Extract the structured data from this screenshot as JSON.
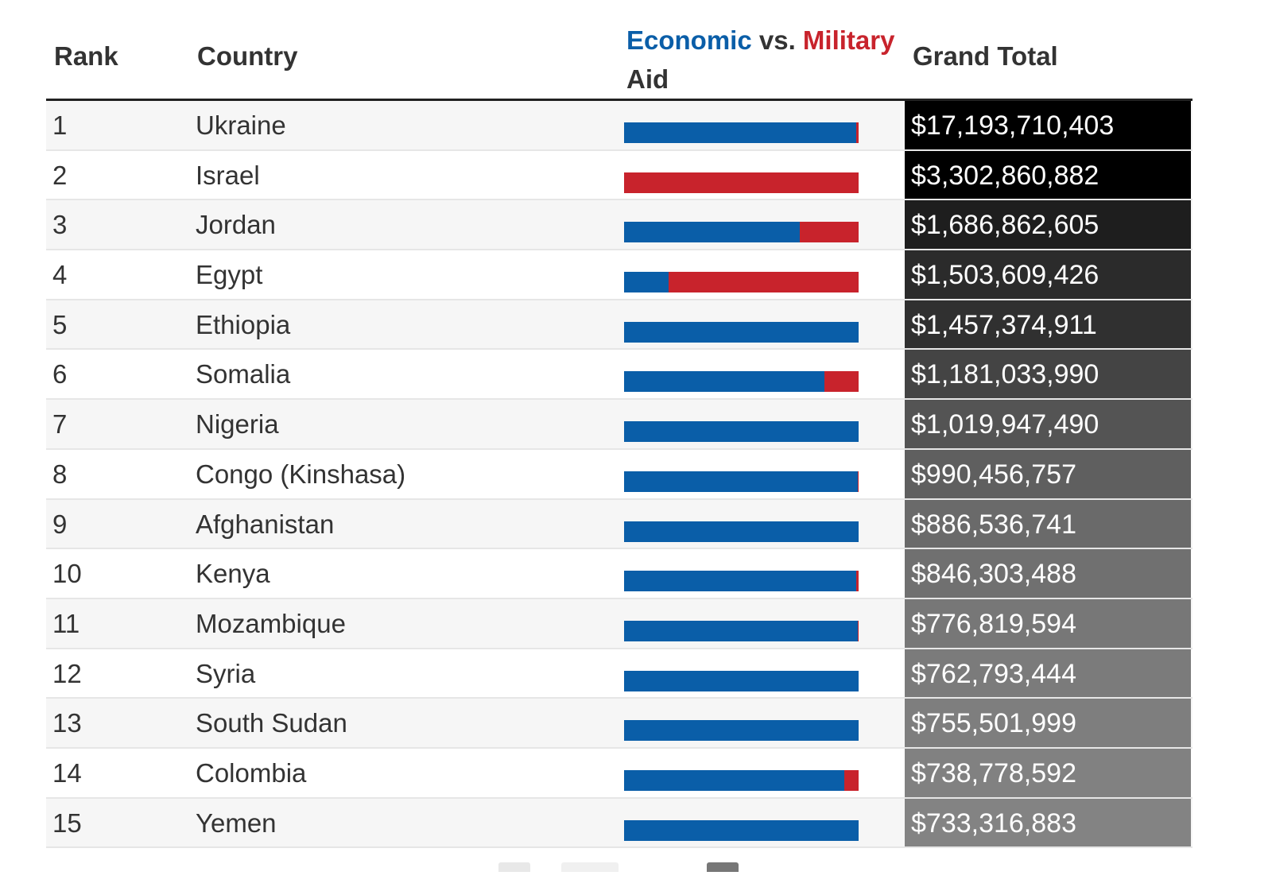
{
  "header": {
    "rank": "Rank",
    "country": "Country",
    "aid_economic": "Economic",
    "aid_vs": " vs. ",
    "aid_military": "Military",
    "aid_suffix": "Aid",
    "grand_total": "Grand Total"
  },
  "colors": {
    "economic": "#0a5ea8",
    "military": "#c8232c"
  },
  "chart_data": {
    "type": "table",
    "columns": [
      "Rank",
      "Country",
      "Economic vs. Military Aid",
      "Grand Total"
    ],
    "rows": [
      {
        "rank": "1",
        "country": "Ukraine",
        "economic_share": 0.99,
        "total": "$17,193,710,403",
        "shade": "#000000"
      },
      {
        "rank": "2",
        "country": "Israel",
        "economic_share": 0.0,
        "total": "$3,302,860,882",
        "shade": "#000000"
      },
      {
        "rank": "3",
        "country": "Jordan",
        "economic_share": 0.75,
        "total": "$1,686,862,605",
        "shade": "#1e1e1e"
      },
      {
        "rank": "4",
        "country": "Egypt",
        "economic_share": 0.19,
        "total": "$1,503,609,426",
        "shade": "#2b2b2b"
      },
      {
        "rank": "5",
        "country": "Ethiopia",
        "economic_share": 1.0,
        "total": "$1,457,374,911",
        "shade": "#303030"
      },
      {
        "rank": "6",
        "country": "Somalia",
        "economic_share": 0.855,
        "total": "$1,181,033,990",
        "shade": "#444444"
      },
      {
        "rank": "7",
        "country": "Nigeria",
        "economic_share": 1.0,
        "total": "$1,019,947,490",
        "shade": "#545454"
      },
      {
        "rank": "8",
        "country": "Congo (Kinshasa)",
        "economic_share": 0.997,
        "total": "$990,456,757",
        "shade": "#5f5f5f"
      },
      {
        "rank": "9",
        "country": "Afghanistan",
        "economic_share": 1.0,
        "total": "$886,536,741",
        "shade": "#6a6a6a"
      },
      {
        "rank": "10",
        "country": "Kenya",
        "economic_share": 0.99,
        "total": "$846,303,488",
        "shade": "#707070"
      },
      {
        "rank": "11",
        "country": "Mozambique",
        "economic_share": 0.997,
        "total": "$776,819,594",
        "shade": "#777777"
      },
      {
        "rank": "12",
        "country": "Syria",
        "economic_share": 1.0,
        "total": "$762,793,444",
        "shade": "#7b7b7b"
      },
      {
        "rank": "13",
        "country": "South Sudan",
        "economic_share": 1.0,
        "total": "$755,501,999",
        "shade": "#7e7e7e"
      },
      {
        "rank": "14",
        "country": "Colombia",
        "economic_share": 0.94,
        "total": "$738,778,592",
        "shade": "#818181"
      },
      {
        "rank": "15",
        "country": "Yemen",
        "economic_share": 1.0,
        "total": "$733,316,883",
        "shade": "#838383"
      }
    ]
  }
}
